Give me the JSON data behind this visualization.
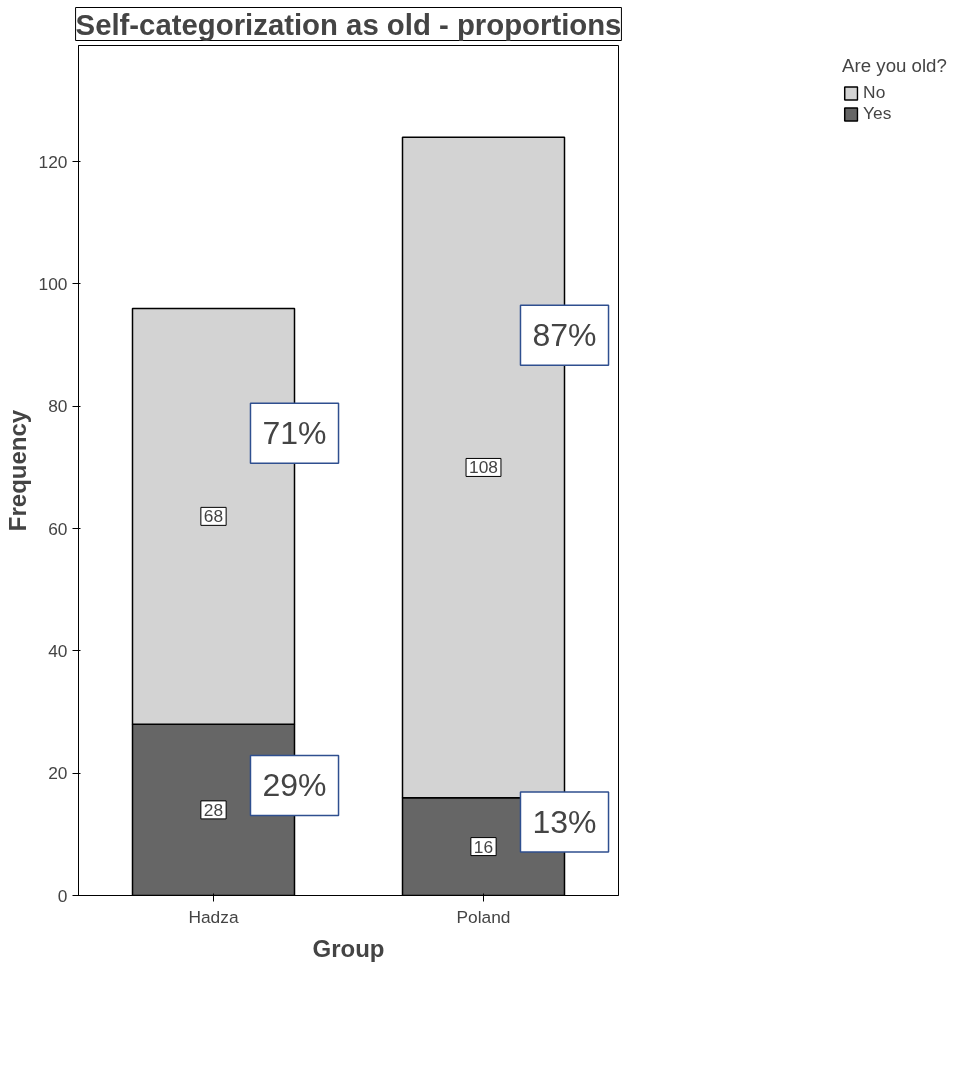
{
  "chart_data": {
    "type": "bar",
    "title": "Self-categorization as old - proportions",
    "xlabel": "Group",
    "ylabel": "Frequency",
    "legend_title": "Are you old?",
    "categories": [
      "Hadza",
      "Poland"
    ],
    "stacked": true,
    "series": [
      {
        "name": "Yes",
        "color": "#666666",
        "values": [
          28,
          16
        ]
      },
      {
        "name": "No",
        "color": "#d3d3d3",
        "values": [
          68,
          108
        ]
      }
    ],
    "ylim": [
      0,
      139
    ],
    "yticks": [
      0,
      20,
      40,
      60,
      80,
      100,
      120
    ],
    "data_labels": true,
    "grid": false,
    "legend": "top right",
    "annotations": [
      "71%",
      "29%",
      "87%",
      "13%"
    ]
  }
}
